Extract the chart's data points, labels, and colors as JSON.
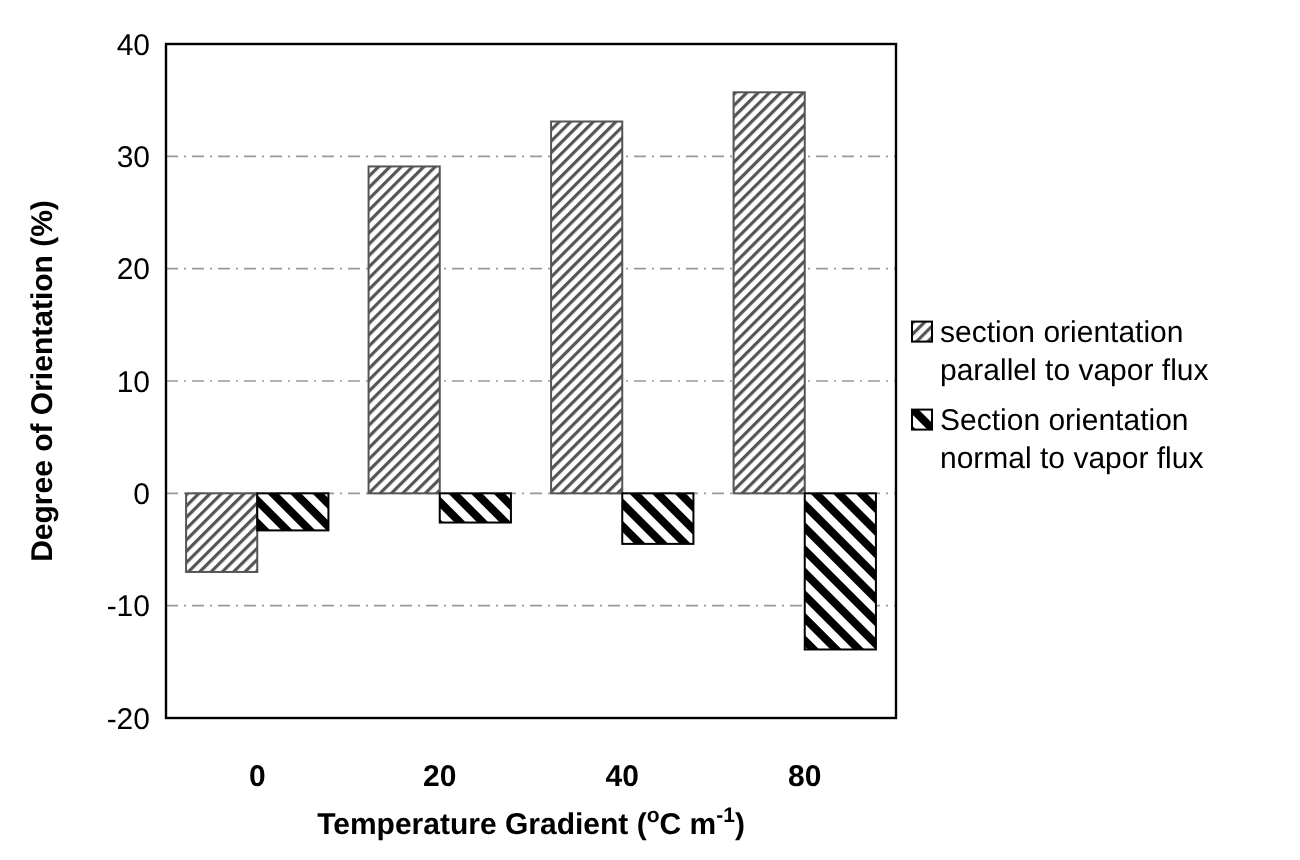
{
  "chart_data": {
    "type": "bar",
    "xlabel": "Temperature Gradient ($^{o}$C m$^{-1}$)",
    "ylabel": "Degree of Orientation (%)",
    "categories": [
      "0",
      "20",
      "40",
      "80"
    ],
    "series": [
      {
        "name": "section orientation parallel to vapor flux",
        "color": "#555555",
        "values": [
          -7.0,
          29.1,
          33.1,
          35.7
        ]
      },
      {
        "name": "Section orientation normal to vapor flux",
        "color": "#000000",
        "values": [
          -3.3,
          -2.6,
          -4.5,
          -13.9
        ]
      }
    ],
    "ylim": [
      -20,
      40
    ],
    "yticks": [
      -20,
      -10,
      0,
      10,
      20,
      30,
      40
    ],
    "grid": "y",
    "legend": "right"
  }
}
